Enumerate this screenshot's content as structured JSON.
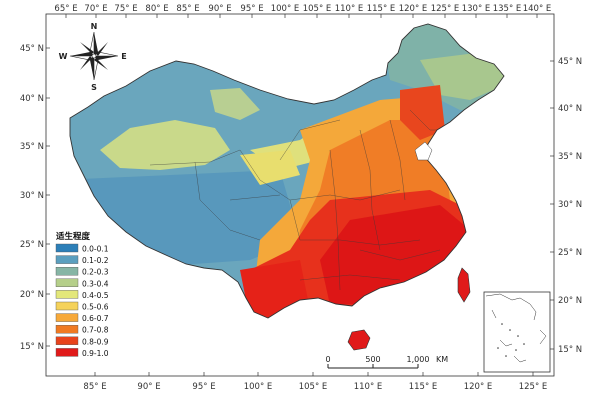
{
  "map": {
    "lon_ticks_top": [
      "65° E",
      "70° E",
      "75° E",
      "80° E",
      "85° E",
      "90° E",
      "95° E",
      "100° E",
      "105° E",
      "110° E",
      "115° E",
      "120° E",
      "125° E",
      "130° E",
      "135° E",
      "140° E"
    ],
    "lon_ticks_bottom": [
      "85° E",
      "90° E",
      "95° E",
      "100° E",
      "105° E",
      "110° E",
      "115° E",
      "120° E",
      "125° E"
    ],
    "lat_ticks_left": [
      "45° N",
      "40° N",
      "35° N",
      "30° N",
      "25° N",
      "20° N",
      "15° N"
    ],
    "lat_ticks_right": [
      "45° N",
      "40° N",
      "35° N",
      "30° N",
      "25° N",
      "20° N",
      "15° N"
    ]
  },
  "compass": {
    "n": "N",
    "s": "S",
    "e": "E",
    "w": "W"
  },
  "legend": {
    "title": "适生程度",
    "items": [
      {
        "label": "0.0-0.1",
        "color": "#2c7fb8"
      },
      {
        "label": "0.1-0.2",
        "color": "#5b9fbf"
      },
      {
        "label": "0.2-0.3",
        "color": "#86b5a5"
      },
      {
        "label": "0.3-0.4",
        "color": "#b5cf8a"
      },
      {
        "label": "0.4-0.5",
        "color": "#e3e77a"
      },
      {
        "label": "0.5-0.6",
        "color": "#f5d25a"
      },
      {
        "label": "0.6-0.7",
        "color": "#f7a93a"
      },
      {
        "label": "0.7-0.8",
        "color": "#f07a22"
      },
      {
        "label": "0.8-0.9",
        "color": "#e8431c"
      },
      {
        "label": "0.9-1.0",
        "color": "#e01a1a"
      }
    ]
  },
  "scalebar": {
    "labels": [
      "0",
      "500",
      "1,000"
    ],
    "unit": "KM"
  }
}
